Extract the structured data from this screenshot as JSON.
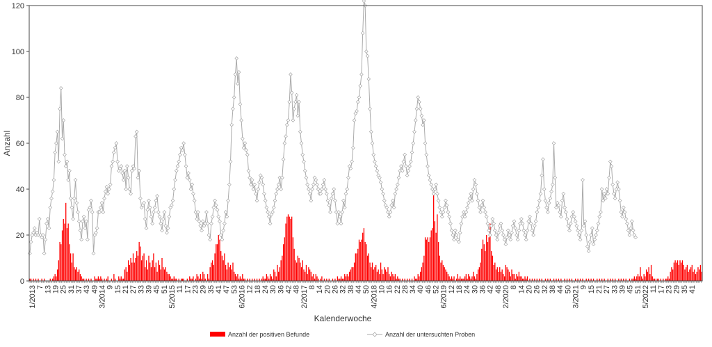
{
  "chart_data": {
    "type": "bar",
    "xlabel": "Kalenderwoche",
    "ylabel": "Anzahl",
    "ylim": [
      0,
      120
    ],
    "yticks": [
      0,
      20,
      40,
      60,
      80,
      100,
      120
    ],
    "grid": false,
    "legend_position": "bottom",
    "x_start": "1/2013",
    "x_end": "2022 KW 53",
    "x_tick_labels": [
      "1/2013",
      "7",
      "13",
      "19",
      "25",
      "31",
      "37",
      "43",
      "49",
      "3/2014",
      "9",
      "15",
      "21",
      "27",
      "33",
      "39",
      "45",
      "51",
      "5/2015",
      "11",
      "17",
      "23",
      "29",
      "35",
      "41",
      "47",
      "53",
      "6/2016",
      "12",
      "18",
      "24",
      "30",
      "36",
      "42",
      "48",
      "2/2017",
      "8",
      "14",
      "20",
      "26",
      "32",
      "38",
      "44",
      "50",
      "4/2018",
      "10",
      "16",
      "22",
      "28",
      "34",
      "40",
      "46",
      "52",
      "6/2019",
      "12",
      "18",
      "24",
      "30",
      "36",
      "42",
      "48",
      "2/2020",
      "8",
      "14",
      "20",
      "26",
      "32",
      "38",
      "44",
      "50",
      "3/2021",
      "9",
      "15",
      "21",
      "27",
      "33",
      "39",
      "45",
      "51",
      "5/2022",
      "11",
      "17",
      "23",
      "29",
      "35",
      "41"
    ],
    "series": [
      {
        "name": "Anzahl der positiven Befunde",
        "kind": "bar",
        "color": "#ff0000",
        "values": [
          1,
          1,
          0,
          1,
          0,
          1,
          0,
          1,
          0,
          0,
          1,
          0,
          1,
          0,
          0,
          0,
          0,
          1,
          0,
          1,
          2,
          3,
          2,
          5,
          9,
          17,
          16,
          22,
          27,
          25,
          34,
          23,
          25,
          16,
          12,
          8,
          12,
          6,
          5,
          6,
          4,
          5,
          3,
          2,
          1,
          1,
          0,
          1,
          0,
          1,
          0,
          1,
          0,
          0,
          2,
          1,
          1,
          2,
          1,
          2,
          1,
          0,
          1,
          0,
          1,
          2,
          0,
          0,
          1,
          0,
          3,
          1,
          0,
          0,
          2,
          1,
          2,
          1,
          1,
          5,
          6,
          4,
          9,
          7,
          10,
          8,
          12,
          8,
          10,
          13,
          11,
          17,
          15,
          9,
          11,
          12,
          6,
          9,
          5,
          11,
          8,
          6,
          9,
          12,
          6,
          8,
          4,
          9,
          7,
          5,
          10,
          6,
          5,
          6,
          4,
          3,
          3,
          2,
          1,
          1,
          2,
          1,
          1,
          0,
          1,
          0,
          1,
          1,
          1,
          0,
          0,
          1,
          0,
          2,
          1,
          1,
          2,
          0,
          1,
          3,
          2,
          1,
          3,
          1,
          4,
          3,
          1,
          0,
          3,
          1,
          6,
          8,
          9,
          7,
          12,
          16,
          16,
          20,
          18,
          13,
          11,
          9,
          12,
          7,
          5,
          8,
          6,
          7,
          5,
          8,
          4,
          3,
          2,
          3,
          1,
          2,
          1,
          3,
          1,
          1,
          0,
          1,
          0,
          1,
          0,
          1,
          0,
          1,
          0,
          1,
          0,
          1,
          0,
          1,
          2,
          1,
          1,
          3,
          2,
          1,
          3,
          2,
          1,
          5,
          4,
          2,
          7,
          4,
          6,
          9,
          11,
          16,
          19,
          25,
          28,
          29,
          28,
          27,
          28,
          19,
          14,
          9,
          8,
          11,
          10,
          8,
          6,
          9,
          5,
          4,
          7,
          3,
          6,
          5,
          4,
          2,
          3,
          1,
          3,
          2,
          1,
          0,
          1,
          2,
          0,
          1,
          0,
          1,
          0,
          1,
          0,
          0,
          1,
          0,
          1,
          0,
          2,
          1,
          1,
          2,
          1,
          1,
          3,
          2,
          3,
          2,
          4,
          5,
          6,
          6,
          8,
          12,
          12,
          14,
          18,
          17,
          18,
          21,
          23,
          17,
          16,
          11,
          12,
          8,
          6,
          8,
          5,
          6,
          7,
          4,
          5,
          3,
          8,
          5,
          3,
          6,
          5,
          4,
          6,
          3,
          2,
          4,
          3,
          2,
          3,
          1,
          2,
          1,
          1,
          0,
          1,
          0,
          1,
          0,
          1,
          0,
          1,
          0,
          1,
          0,
          2,
          1,
          1,
          3,
          2,
          4,
          6,
          8,
          11,
          19,
          18,
          19,
          17,
          19,
          22,
          23,
          38,
          26,
          21,
          29,
          17,
          11,
          8,
          9,
          7,
          6,
          5,
          4,
          3,
          2,
          1,
          2,
          1,
          2,
          0,
          1,
          3,
          1,
          2,
          1,
          1,
          1,
          2,
          3,
          1,
          3,
          2,
          1,
          2,
          4,
          2,
          1,
          3,
          5,
          6,
          8,
          14,
          18,
          16,
          13,
          20,
          17,
          19,
          25,
          13,
          11,
          7,
          8,
          5,
          6,
          4,
          6,
          4,
          5,
          3,
          2,
          7,
          6,
          5,
          4,
          2,
          5,
          3,
          3,
          1,
          3,
          2,
          4,
          2,
          2,
          1,
          1,
          2,
          1,
          2,
          0,
          1,
          0,
          1,
          0,
          1,
          0,
          1,
          0,
          1,
          0,
          1,
          0,
          0,
          1,
          0,
          1,
          0,
          1,
          0,
          0,
          1,
          0,
          1,
          0,
          1,
          0,
          1,
          0,
          0,
          1,
          0,
          1,
          0,
          1,
          0,
          1,
          0,
          0,
          1,
          0,
          1,
          0,
          1,
          0,
          1,
          0,
          0,
          1,
          0,
          1,
          0,
          1,
          0,
          1,
          0,
          0,
          1,
          0,
          1,
          0,
          1,
          0,
          1,
          0,
          0,
          1,
          0,
          1,
          0,
          1,
          0,
          1,
          0,
          0,
          1,
          0,
          1,
          0,
          1,
          0,
          1,
          0,
          0,
          1,
          0,
          1,
          1,
          2,
          1,
          2,
          3,
          2,
          6,
          2,
          1,
          3,
          2,
          5,
          4,
          6,
          3,
          7,
          2,
          1,
          1,
          0,
          1,
          1,
          0,
          1,
          0,
          1,
          0,
          1,
          1,
          2,
          1,
          4,
          6,
          5,
          8,
          9,
          8,
          9,
          7,
          9,
          8,
          9,
          7,
          5,
          6,
          7,
          4,
          5,
          6,
          7,
          4,
          5,
          3,
          4,
          6,
          5,
          7,
          4
        ]
      },
      {
        "name": "Anzahl der untersuchten Proben",
        "kind": "line",
        "color": "#aaaaaa",
        "values": [
          12,
          17,
          20,
          21,
          23,
          20,
          21,
          20,
          27,
          20,
          19,
          20,
          12,
          18,
          25,
          27,
          23,
          32,
          36,
          39,
          44,
          56,
          60,
          65,
          52,
          75,
          84,
          62,
          70,
          55,
          50,
          52,
          44,
          48,
          36,
          32,
          27,
          36,
          44,
          34,
          30,
          26,
          22,
          18,
          26,
          28,
          23,
          26,
          18,
          31,
          32,
          35,
          30,
          12,
          20,
          21,
          23,
          30,
          30,
          32,
          34,
          30,
          36,
          39,
          41,
          38,
          40,
          42,
          50,
          52,
          56,
          58,
          60,
          52,
          48,
          49,
          50,
          47,
          44,
          48,
          40,
          50,
          45,
          40,
          38,
          48,
          50,
          49,
          63,
          65,
          45,
          48,
          36,
          32,
          33,
          34,
          27,
          23,
          31,
          35,
          32,
          28,
          25,
          30,
          32,
          35,
          37,
          30,
          28,
          25,
          22,
          27,
          30,
          24,
          21,
          23,
          28,
          32,
          33,
          35,
          40,
          44,
          48,
          50,
          52,
          55,
          58,
          57,
          60,
          55,
          50,
          45,
          47,
          44,
          40,
          42,
          38,
          35,
          30,
          27,
          30,
          26,
          24,
          22,
          26,
          24,
          25,
          30,
          25,
          20,
          18,
          25,
          28,
          32,
          35,
          33,
          31,
          28,
          26,
          20,
          18,
          22,
          25,
          30,
          28,
          35,
          42,
          52,
          68,
          75,
          80,
          90,
          97,
          86,
          91,
          77,
          70,
          62,
          58,
          60,
          57,
          55,
          48,
          45,
          42,
          44,
          40,
          42,
          38,
          35,
          40,
          43,
          46,
          45,
          42,
          38,
          35,
          32,
          30,
          28,
          25,
          29,
          30,
          32,
          35,
          38,
          40,
          42,
          45,
          40,
          45,
          53,
          60,
          63,
          68,
          70,
          78,
          90,
          82,
          70,
          75,
          78,
          81,
          72,
          78,
          65,
          60,
          55,
          52,
          48,
          45,
          42,
          40,
          38,
          35,
          40,
          42,
          45,
          44,
          42,
          40,
          38,
          38,
          40,
          42,
          44,
          40,
          38,
          35,
          33,
          30,
          36,
          38,
          40,
          35,
          30,
          25,
          30,
          28,
          25,
          30,
          35,
          32,
          38,
          40,
          45,
          50,
          49,
          52,
          58,
          70,
          73,
          74,
          78,
          80,
          85,
          90,
          108,
          122,
          120,
          100,
          98,
          88,
          75,
          65,
          60,
          55,
          52,
          50,
          48,
          46,
          45,
          43,
          40,
          38,
          35,
          33,
          32,
          30,
          28,
          30,
          33,
          35,
          32,
          38,
          40,
          42,
          45,
          48,
          50,
          48,
          52,
          55,
          50,
          46,
          48,
          50,
          52,
          56,
          60,
          65,
          70,
          75,
          80,
          78,
          75,
          72,
          68,
          70,
          60,
          55,
          50,
          46,
          44,
          42,
          40,
          38,
          40,
          42,
          38,
          35,
          32,
          30,
          28,
          30,
          32,
          35,
          33,
          30,
          28,
          25,
          22,
          20,
          18,
          22,
          20,
          18,
          17,
          21,
          25,
          28,
          30,
          28,
          30,
          32,
          34,
          36,
          38,
          35,
          40,
          44,
          42,
          38,
          35,
          32,
          30,
          33,
          35,
          32,
          30,
          28,
          25,
          22,
          20,
          24,
          27,
          25,
          22,
          20,
          18,
          21,
          24,
          25,
          22,
          20,
          18,
          16,
          19,
          22,
          20,
          18,
          21,
          24,
          26,
          23,
          20,
          18,
          22,
          25,
          27,
          25,
          22,
          20,
          18,
          22,
          26,
          28,
          25,
          22,
          20,
          24,
          26,
          30,
          32,
          35,
          38,
          46,
          53,
          40,
          35,
          32,
          30,
          34,
          36,
          39,
          42,
          60,
          45,
          32,
          34,
          33,
          30,
          28,
          35,
          38,
          32,
          30,
          27,
          24,
          22,
          25,
          28,
          30,
          28,
          26,
          24,
          22,
          20,
          18,
          22,
          44,
          24,
          26,
          20,
          15,
          13,
          17,
          20,
          23,
          16,
          18,
          20,
          22,
          25,
          28,
          30,
          40,
          35,
          38,
          36,
          40,
          38,
          45,
          52,
          50,
          42,
          38,
          36,
          40,
          43,
          40,
          35,
          30,
          28,
          32,
          30,
          27,
          25,
          22,
          20,
          23,
          26,
          22,
          20,
          19
        ]
      }
    ]
  }
}
